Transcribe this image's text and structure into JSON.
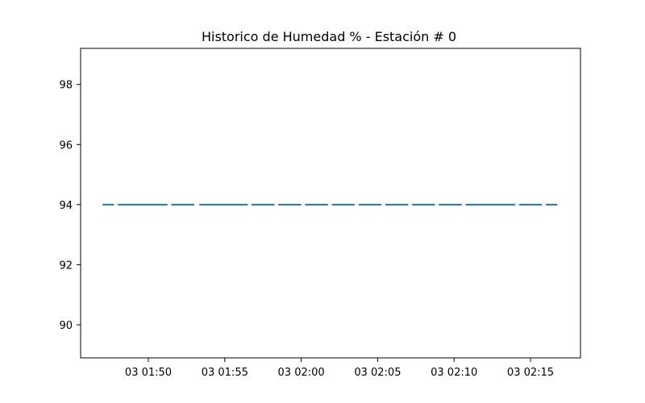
{
  "chart_data": {
    "type": "line",
    "title": "Historico de Humedad % - Estación # 0",
    "xlabel": "",
    "ylabel": "",
    "x_ticks": [
      "03 01:50",
      "03 01:55",
      "03 02:00",
      "03 02:05",
      "03 02:10",
      "03 02:15"
    ],
    "y_ticks": [
      "90",
      "92",
      "94",
      "96",
      "98"
    ],
    "ylim": [
      88.9,
      99.2
    ],
    "grid": false,
    "series": [
      {
        "color": "#1f77b4",
        "style": "dashed",
        "segments": [
          [
            "03 01:47:00",
            "03 01:47:45"
          ],
          [
            "03 01:48:00",
            "03 01:51:15"
          ],
          [
            "03 01:51:30",
            "03 01:53:00"
          ],
          [
            "03 01:53:20",
            "03 01:56:30"
          ],
          [
            "03 01:56:45",
            "03 01:58:15"
          ],
          [
            "03 01:58:30",
            "03 02:00:00"
          ],
          [
            "03 02:00:15",
            "03 02:01:45"
          ],
          [
            "03 02:02:00",
            "03 02:03:30"
          ],
          [
            "03 02:03:45",
            "03 02:05:15"
          ],
          [
            "03 02:05:30",
            "03 02:07:00"
          ],
          [
            "03 02:07:15",
            "03 02:08:45"
          ],
          [
            "03 02:09:00",
            "03 02:10:30"
          ],
          [
            "03 02:10:45",
            "03 02:14:00"
          ],
          [
            "03 02:14:15",
            "03 02:15:45"
          ],
          [
            "03 02:16:00",
            "03 02:16:45"
          ]
        ],
        "value": 94
      }
    ]
  }
}
